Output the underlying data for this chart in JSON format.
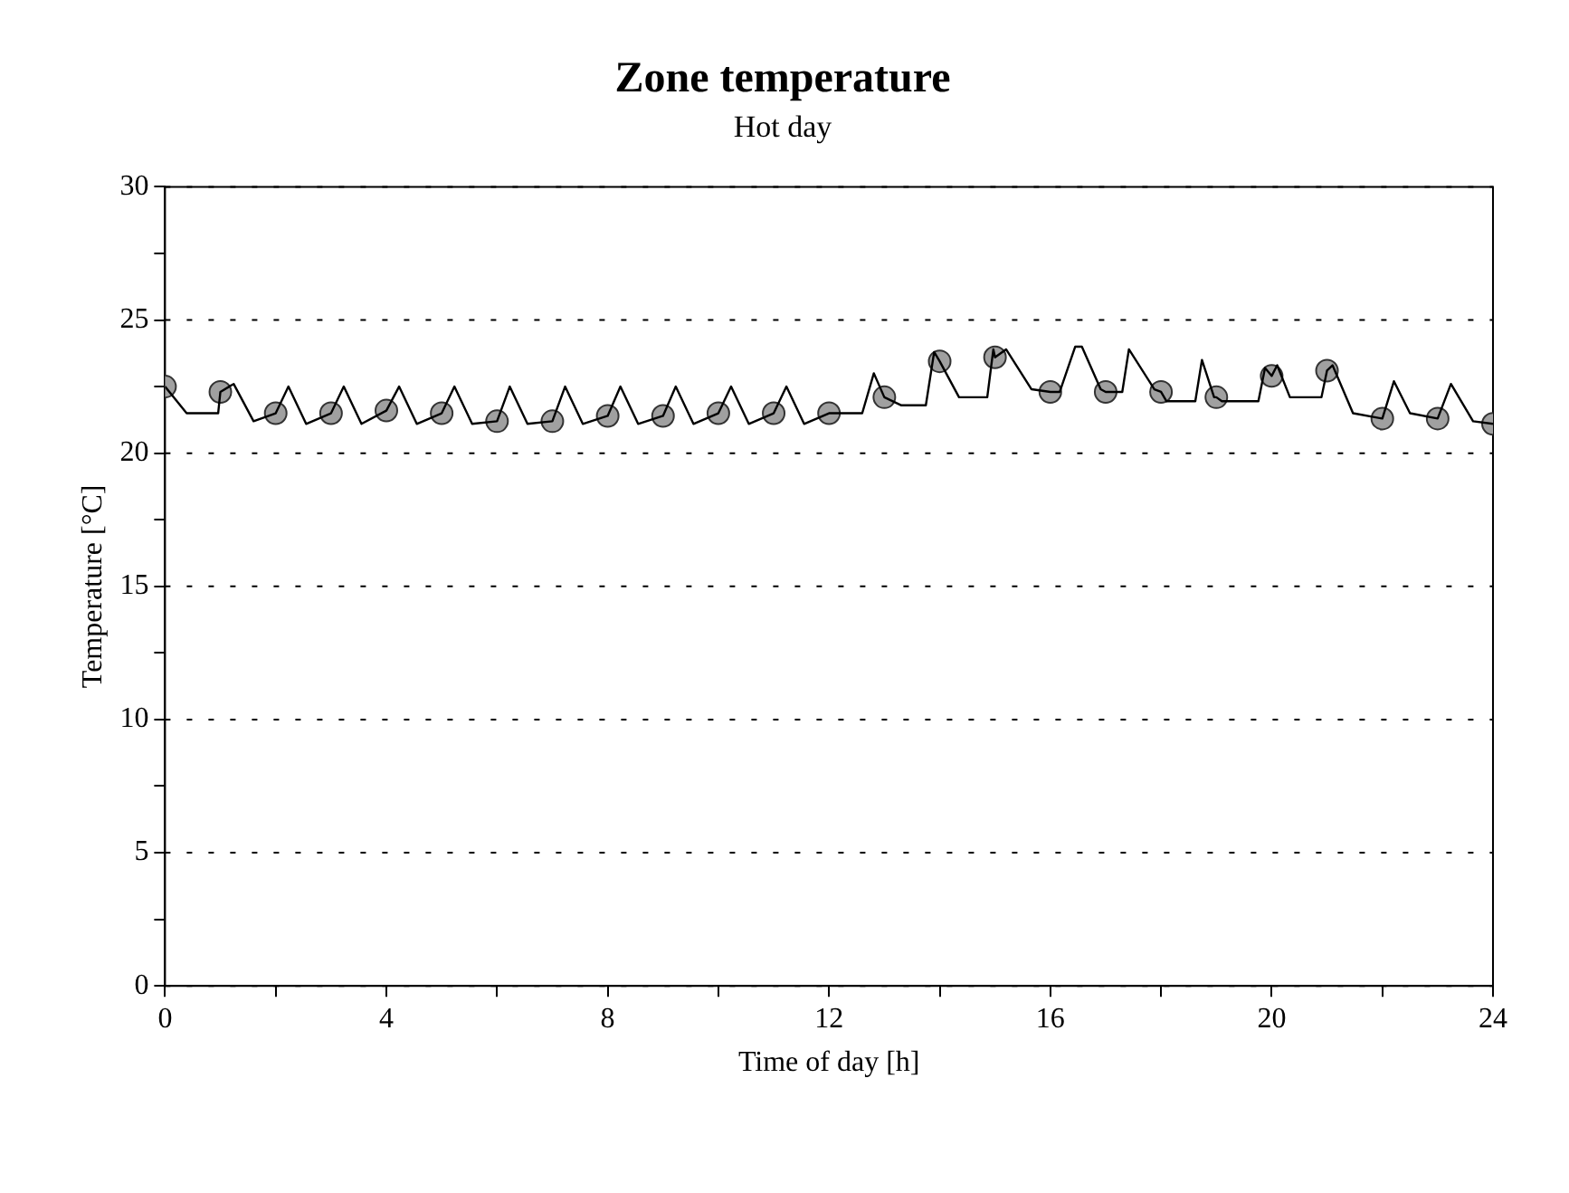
{
  "chart_data": {
    "type": "line",
    "title": "Zone temperature",
    "subtitle": "Hot day",
    "xlabel": "Time of day [h]",
    "ylabel": "Temperature [°C]",
    "xlim": [
      0,
      24
    ],
    "ylim": [
      0,
      30
    ],
    "xticks": [
      0,
      {
        "value": 2,
        "label": null
      },
      4,
      {
        "value": 6,
        "label": null
      },
      8,
      {
        "value": 10,
        "label": null
      },
      12,
      {
        "value": 14,
        "label": null
      },
      16,
      {
        "value": 18,
        "label": null
      },
      20,
      {
        "value": 22,
        "label": null
      },
      24
    ],
    "yticks": [
      0,
      {
        "value": 2.5,
        "label": null
      },
      5,
      {
        "value": 7.5,
        "label": null
      },
      10,
      {
        "value": 12.5,
        "label": null
      },
      15,
      {
        "value": 17.5,
        "label": null
      },
      20,
      {
        "value": 22.5,
        "label": null
      },
      25,
      {
        "value": 27.5,
        "label": null
      },
      30
    ],
    "grid": "y",
    "legend": false,
    "series": [
      {
        "type": "line",
        "color": "#000000",
        "marker": "none",
        "line_style": "solid",
        "x": [
          0,
          0.39,
          0.96,
          1,
          1.24,
          1.6,
          2,
          2.23,
          2.55,
          3,
          3.23,
          3.55,
          4,
          4.23,
          4.55,
          5,
          5.23,
          5.55,
          6,
          6.23,
          6.55,
          7,
          7.23,
          7.55,
          8,
          8.23,
          8.55,
          9,
          9.23,
          9.55,
          10,
          10.23,
          10.55,
          11,
          11.23,
          11.55,
          12,
          12.6,
          12.81,
          13,
          13.3,
          13.75,
          13.9,
          14,
          14.35,
          14.86,
          14.97,
          15,
          15.2,
          15.66,
          16,
          16.17,
          16.45,
          16.57,
          16.91,
          17,
          17.3,
          17.42,
          17.88,
          18,
          18.1,
          18.62,
          18.74,
          18.96,
          19,
          19.1,
          19.76,
          19.88,
          20,
          20.1,
          20.33,
          20.9,
          21,
          21.1,
          21.47,
          22,
          22.21,
          22.5,
          23,
          23.24,
          23.64,
          24
        ],
        "values": [
          22.5,
          21.5,
          21.5,
          22.3,
          22.6,
          21.2,
          21.5,
          22.5,
          21.1,
          21.5,
          22.5,
          21.1,
          21.6,
          22.5,
          21.1,
          21.5,
          22.5,
          21.1,
          21.2,
          22.5,
          21.1,
          21.2,
          22.5,
          21.1,
          21.4,
          22.5,
          21.1,
          21.4,
          22.5,
          21.1,
          21.5,
          22.5,
          21.1,
          21.5,
          22.5,
          21.1,
          21.5,
          21.5,
          23,
          22.1,
          21.8,
          21.8,
          23.8,
          23.45,
          22.1,
          22.1,
          23.9,
          23.6,
          23.9,
          22.4,
          22.3,
          22.3,
          24,
          24,
          22.4,
          22.3,
          22.3,
          23.9,
          22.4,
          22.3,
          21.95,
          21.95,
          23.5,
          22.1,
          22.1,
          21.95,
          21.95,
          23.2,
          22.9,
          23.3,
          22.1,
          22.1,
          23.1,
          23.3,
          21.5,
          21.3,
          22.7,
          21.5,
          21.3,
          22.6,
          21.2,
          21.1
        ]
      },
      {
        "type": "scatter",
        "color": "#a0a0a0",
        "marker": "circle",
        "x": [
          0,
          1,
          2,
          3,
          4,
          5,
          6,
          7,
          8,
          9,
          10,
          11,
          12,
          13,
          14,
          15,
          16,
          17,
          18,
          19,
          20,
          21,
          22,
          23,
          24
        ],
        "values": [
          22.5,
          22.3,
          21.5,
          21.5,
          21.6,
          21.5,
          21.2,
          21.2,
          21.4,
          21.4,
          21.5,
          21.5,
          21.5,
          22.1,
          23.45,
          23.6,
          22.3,
          22.3,
          22.3,
          22.1,
          22.9,
          23.1,
          21.3,
          21.3,
          21.1
        ]
      }
    ]
  }
}
